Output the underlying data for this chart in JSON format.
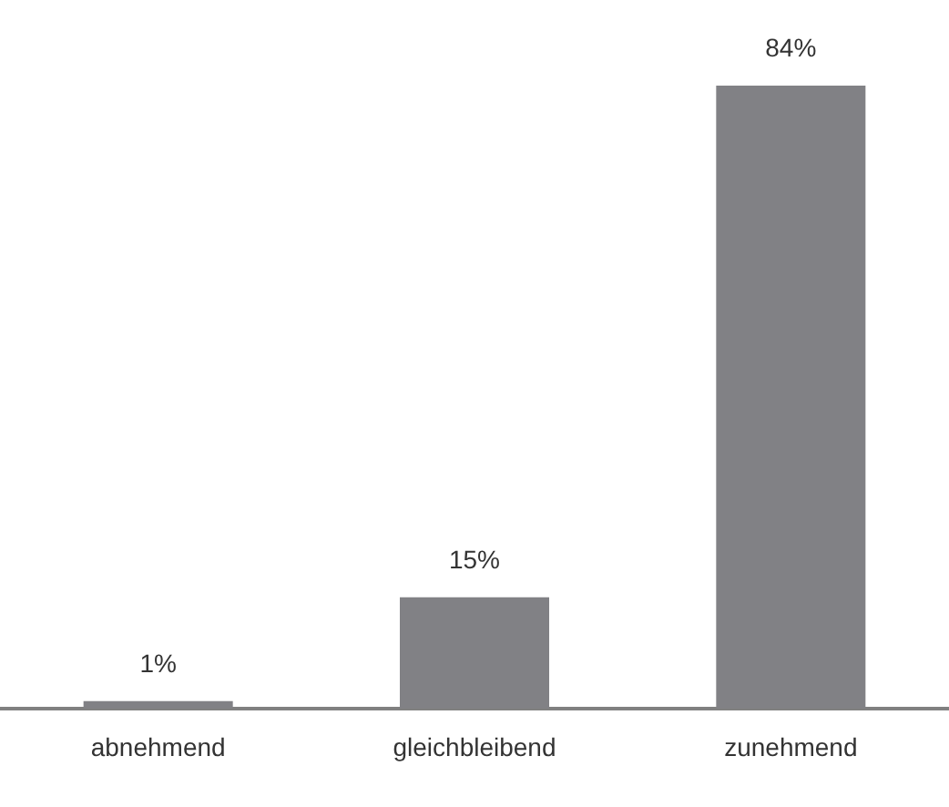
{
  "chart_data": {
    "type": "bar",
    "categories": [
      "abnehmend",
      "gleichbleibend",
      "zunehmend"
    ],
    "values": [
      1,
      15,
      84
    ],
    "color": "#818185",
    "value_labels": [
      "1%",
      "15%",
      "84%"
    ]
  }
}
